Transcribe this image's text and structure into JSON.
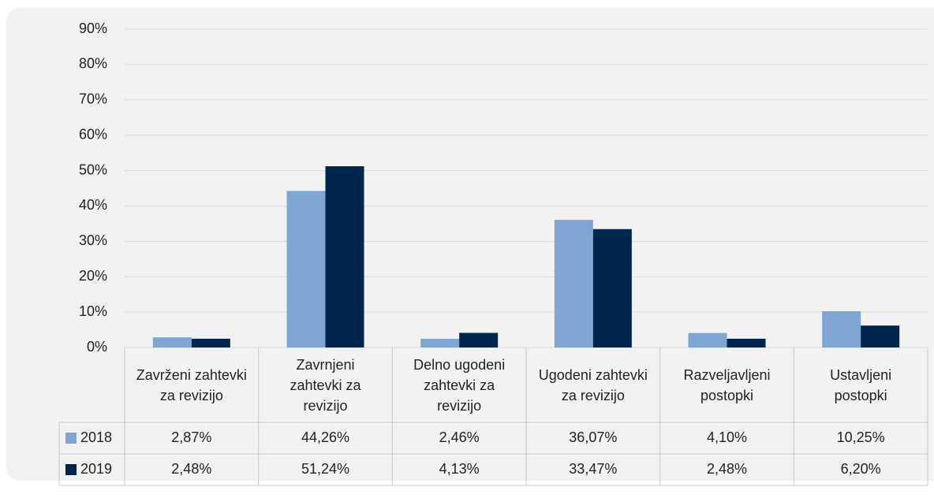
{
  "chart_data": {
    "type": "bar",
    "categories": [
      "Zavrženi zahtevki za revizijo",
      "Zavrnjeni zahtevki za revizijo",
      "Delno ugodeni zahtevki za revizijo",
      "Ugodeni zahtevki za revizijo",
      "Razveljavljeni postopki",
      "Ustavljeni postopki"
    ],
    "series": [
      {
        "name": "2018",
        "color": "#7fa6d3",
        "values": [
          2.87,
          44.26,
          2.46,
          36.07,
          4.1,
          10.25
        ],
        "value_labels": [
          "2,87%",
          "44,26%",
          "2,46%",
          "36,07%",
          "4,10%",
          "10,25%"
        ]
      },
      {
        "name": "2019",
        "color": "#00264d",
        "values": [
          2.48,
          51.24,
          4.13,
          33.47,
          2.48,
          6.2
        ],
        "value_labels": [
          "2,48%",
          "51,24%",
          "4,13%",
          "33,47%",
          "2,48%",
          "6,20%"
        ]
      }
    ],
    "ylim": [
      0,
      90
    ],
    "yticks": [
      {
        "value": 0,
        "label": "0%"
      },
      {
        "value": 10,
        "label": "10%"
      },
      {
        "value": 20,
        "label": "20%"
      },
      {
        "value": 30,
        "label": "30%"
      },
      {
        "value": 40,
        "label": "40%"
      },
      {
        "value": 50,
        "label": "50%"
      },
      {
        "value": 60,
        "label": "60%"
      },
      {
        "value": 70,
        "label": "70%"
      },
      {
        "value": 80,
        "label": "80%"
      },
      {
        "value": 90,
        "label": "90%"
      }
    ],
    "grid": true
  }
}
